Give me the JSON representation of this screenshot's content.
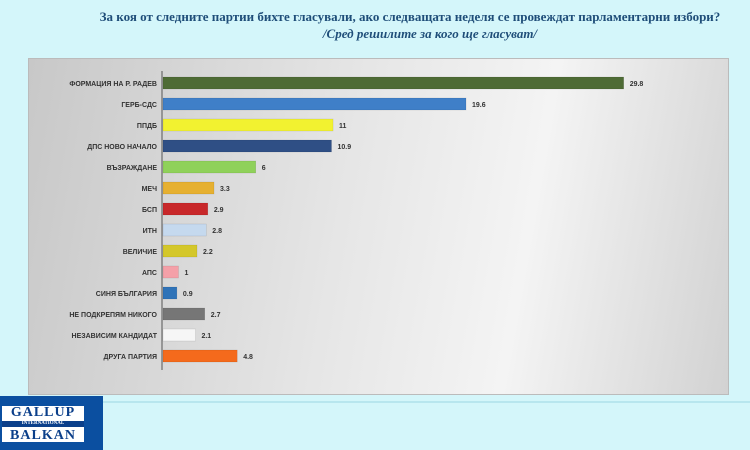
{
  "chart_data": {
    "type": "bar",
    "orientation": "horizontal",
    "title": "За коя от следните партии бихте гласували, ако следващата неделя се провеждат парламентарни избори?",
    "subtitle": "/Сред решилите за кого ще гласуват/",
    "categories": [
      "ФОРМАЦИЯ НА Р. РАДЕВ",
      "ГЕРБ-СДС",
      "ППДБ",
      "ДПС НОВО  НАЧАЛО",
      "ВЪЗРАЖДАНЕ",
      "МЕЧ",
      "БСП",
      "ИТН",
      "ВЕЛИЧИЕ",
      "АПС",
      "СИНЯ БЪЛГАРИЯ",
      "НЕ ПОДКРЕПЯМ НИКОГО",
      "НЕЗАВИСИМ КАНДИДАТ",
      "ДРУГА ПАРТИЯ"
    ],
    "values": [
      29.8,
      19.6,
      11,
      10.9,
      6,
      3.3,
      2.9,
      2.8,
      2.2,
      1,
      0.9,
      2.7,
      2.1,
      4.8
    ],
    "labels": [
      "29.8",
      "19.6",
      "11",
      "10.9",
      "6",
      "3.3",
      "2.9",
      "2.8",
      "2.2",
      "1",
      "0.9",
      "2.7",
      "2.1",
      "4.8"
    ],
    "colors": [
      "#4e6b35",
      "#3f7fc8",
      "#f2f230",
      "#2f4f85",
      "#8fd15a",
      "#e6b030",
      "#c8282a",
      "#c5d9ee",
      "#d4c72a",
      "#f4a0a8",
      "#2f73b8",
      "#767676",
      "#f6f6f6",
      "#f46a1c"
    ],
    "xlim": [
      0,
      32
    ],
    "grid": false,
    "legend": "none"
  },
  "logo": {
    "line1": "GALLUP",
    "line2": "INTERNATIONAL",
    "line3": "BALKAN"
  }
}
